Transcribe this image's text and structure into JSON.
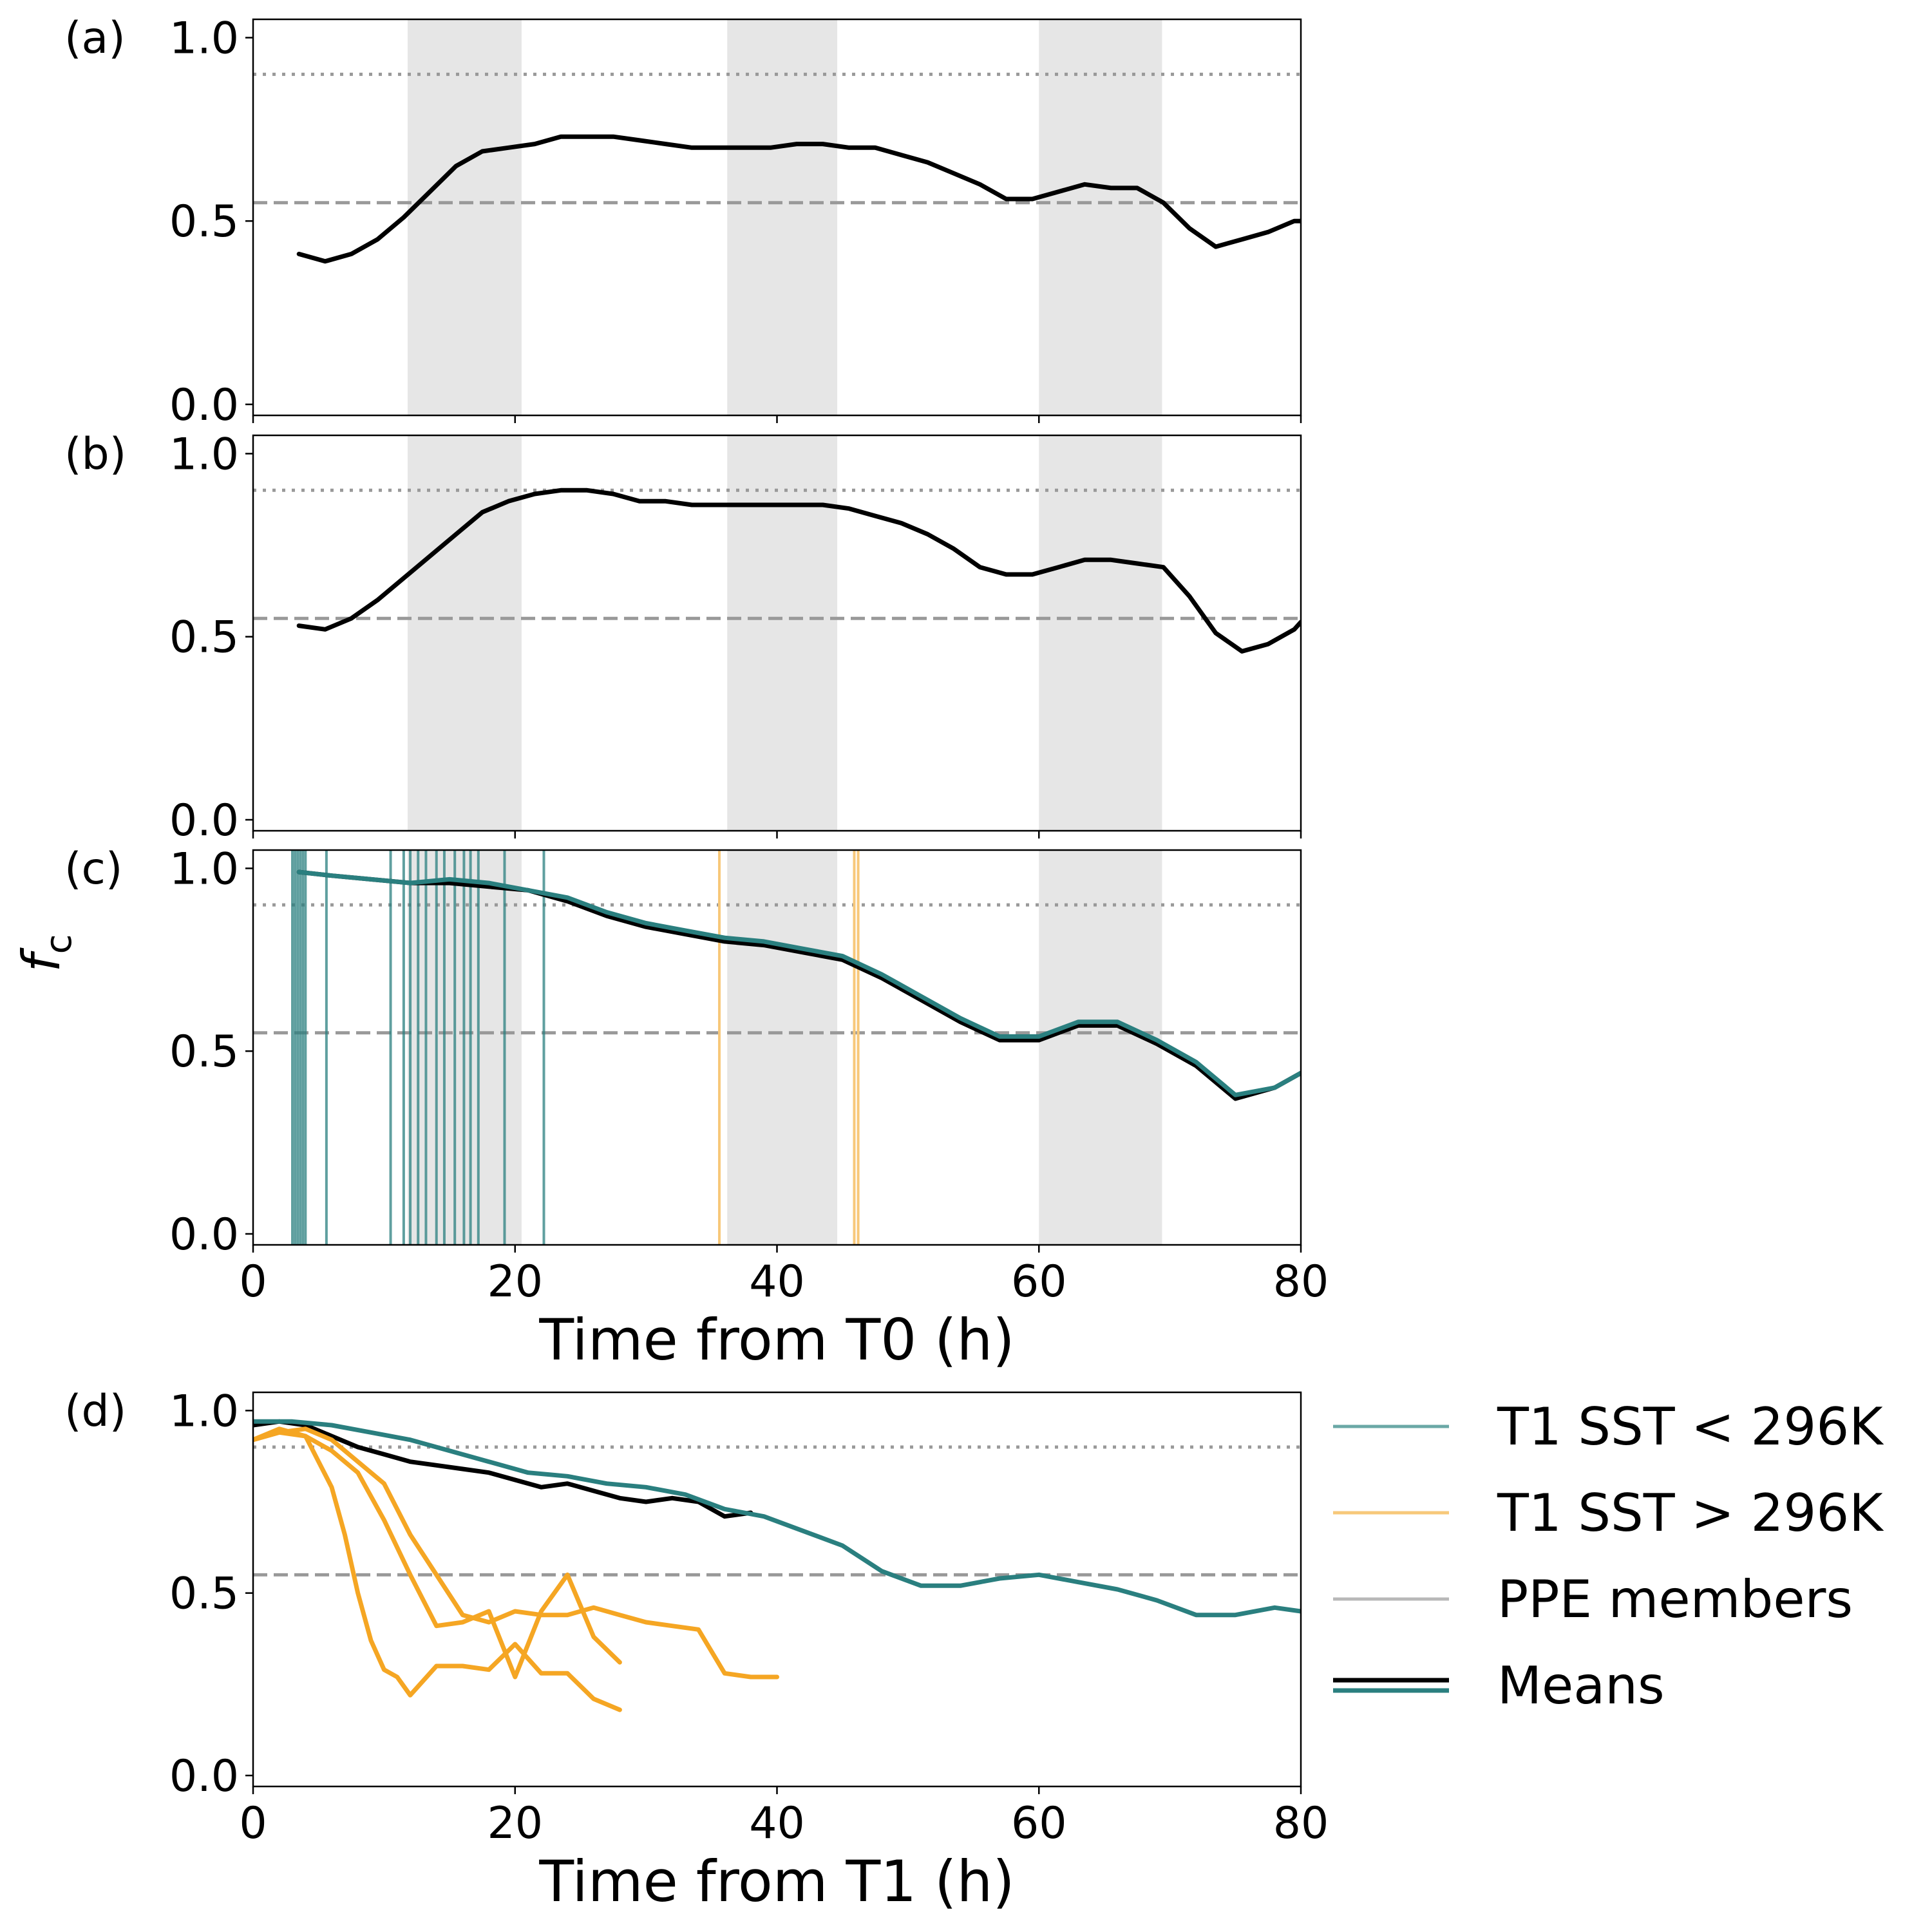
{
  "figure": {
    "ylabel_main": "f",
    "ylabel_sub": "c"
  },
  "chart_data": [
    {
      "panel_label": "(a)",
      "type": "line",
      "xlim": [
        0,
        80
      ],
      "ylim": [
        -0.03,
        1.05
      ],
      "yticks": [
        "0.0",
        "0.5",
        "1.0"
      ],
      "xticks": [],
      "xlabel": "",
      "grid": false,
      "night_bands_h": [
        [
          11.8,
          20.5
        ],
        [
          36.2,
          44.6
        ],
        [
          60,
          69.4
        ]
      ],
      "reference_lines": [
        {
          "style": "dotted",
          "y": 0.9
        },
        {
          "style": "dashed",
          "y": 0.55
        }
      ],
      "series": [
        {
          "role": "mean",
          "color": "#000000",
          "x": [
            3.5,
            5.5,
            7.5,
            9.5,
            11.5,
            13.5,
            15.5,
            17.5,
            19.5,
            21.5,
            23.5,
            25.5,
            27.5,
            29.5,
            31.5,
            33.5,
            35.5,
            37.5,
            39.5,
            41.5,
            43.5,
            45.5,
            47.5,
            49.5,
            51.5,
            53.5,
            55.5,
            57.5,
            59.5,
            61.5,
            63.5,
            65.5,
            67.5,
            69.5,
            71.5,
            73.5,
            75.5,
            77.5,
            79.5,
            80
          ],
          "y": [
            0.41,
            0.39,
            0.41,
            0.45,
            0.51,
            0.58,
            0.65,
            0.69,
            0.7,
            0.71,
            0.73,
            0.73,
            0.73,
            0.72,
            0.71,
            0.7,
            0.7,
            0.7,
            0.7,
            0.71,
            0.71,
            0.7,
            0.7,
            0.68,
            0.66,
            0.63,
            0.6,
            0.56,
            0.56,
            0.58,
            0.6,
            0.59,
            0.59,
            0.55,
            0.48,
            0.43,
            0.45,
            0.47,
            0.5,
            0.5
          ]
        }
      ]
    },
    {
      "panel_label": "(b)",
      "type": "line",
      "xlim": [
        0,
        80
      ],
      "ylim": [
        -0.03,
        1.05
      ],
      "yticks": [
        "0.0",
        "0.5",
        "1.0"
      ],
      "xticks": [],
      "xlabel": "",
      "grid": false,
      "night_bands_h": [
        [
          11.8,
          20.5
        ],
        [
          36.2,
          44.6
        ],
        [
          60,
          69.4
        ]
      ],
      "reference_lines": [
        {
          "style": "dotted",
          "y": 0.9
        },
        {
          "style": "dashed",
          "y": 0.55
        }
      ],
      "series": [
        {
          "role": "mean",
          "color": "#000000",
          "x": [
            3.5,
            5.5,
            7.5,
            9.5,
            11.5,
            13.5,
            15.5,
            17.5,
            19.5,
            21.5,
            23.5,
            25.5,
            27.5,
            29.5,
            31.5,
            33.5,
            35.5,
            37.5,
            39.5,
            41.5,
            43.5,
            45.5,
            47.5,
            49.5,
            51.5,
            53.5,
            55.5,
            57.5,
            59.5,
            61.5,
            63.5,
            65.5,
            67.5,
            69.5,
            71.5,
            73.5,
            75.5,
            77.5,
            79.5,
            80
          ],
          "y": [
            0.53,
            0.52,
            0.55,
            0.6,
            0.66,
            0.72,
            0.78,
            0.84,
            0.87,
            0.89,
            0.9,
            0.9,
            0.89,
            0.87,
            0.87,
            0.86,
            0.86,
            0.86,
            0.86,
            0.86,
            0.86,
            0.85,
            0.83,
            0.81,
            0.78,
            0.74,
            0.69,
            0.67,
            0.67,
            0.69,
            0.71,
            0.71,
            0.7,
            0.69,
            0.61,
            0.51,
            0.46,
            0.48,
            0.52,
            0.54
          ]
        }
      ]
    },
    {
      "panel_label": "(c)",
      "type": "line",
      "xlim": [
        0,
        80
      ],
      "ylim": [
        -0.03,
        1.05
      ],
      "yticks": [
        "0.0",
        "0.5",
        "1.0"
      ],
      "xticks": [
        "0",
        "20",
        "40",
        "60",
        "80"
      ],
      "xlabel": "Time from T0 (h)",
      "grid": false,
      "night_bands_h": [
        [
          11.8,
          20.5
        ],
        [
          36.2,
          44.6
        ],
        [
          60,
          69.4
        ]
      ],
      "reference_lines": [
        {
          "style": "dotted",
          "y": 0.9
        },
        {
          "style": "dashed",
          "y": 0.55
        }
      ],
      "vertical_markers": {
        "teal_x": [
          3,
          3.2,
          3.4,
          3.6,
          3.8,
          4,
          5.6,
          10.5,
          11.5,
          12,
          12.6,
          13.2,
          14,
          14.6,
          15.4,
          16.1,
          16.6,
          17.2,
          19.2,
          22.2
        ],
        "orange_x": [
          35.6,
          45.9,
          46.2
        ]
      },
      "series": [
        {
          "role": "mean",
          "color": "#000000",
          "x": [
            3.5,
            6,
            9,
            12,
            15,
            18,
            21,
            24,
            27,
            30,
            33,
            36,
            39,
            42,
            45,
            48,
            51,
            54,
            57,
            60,
            63,
            66,
            69,
            72,
            75,
            78,
            80
          ],
          "y": [
            0.99,
            0.98,
            0.97,
            0.96,
            0.96,
            0.95,
            0.94,
            0.91,
            0.87,
            0.84,
            0.82,
            0.8,
            0.79,
            0.77,
            0.75,
            0.7,
            0.64,
            0.58,
            0.53,
            0.53,
            0.57,
            0.57,
            0.52,
            0.46,
            0.37,
            0.4,
            0.44
          ]
        },
        {
          "role": "teal mean",
          "color": "#2a7f7f",
          "x": [
            3.5,
            6,
            9,
            12,
            15,
            18,
            21,
            24,
            27,
            30,
            33,
            36,
            39,
            42,
            45,
            48,
            51,
            54,
            57,
            60,
            63,
            66,
            69,
            72,
            75,
            78,
            80
          ],
          "y": [
            0.99,
            0.98,
            0.97,
            0.96,
            0.97,
            0.96,
            0.94,
            0.92,
            0.88,
            0.85,
            0.83,
            0.81,
            0.8,
            0.78,
            0.76,
            0.71,
            0.65,
            0.59,
            0.54,
            0.54,
            0.58,
            0.58,
            0.53,
            0.47,
            0.38,
            0.4,
            0.44
          ]
        }
      ]
    },
    {
      "panel_label": "(d)",
      "type": "line",
      "xlim": [
        0,
        80
      ],
      "ylim": [
        -0.03,
        1.05
      ],
      "yticks": [
        "0.0",
        "0.5",
        "1.0"
      ],
      "xticks": [
        "0",
        "20",
        "40",
        "60",
        "80"
      ],
      "xlabel": "Time from T1 (h)",
      "grid": false,
      "reference_lines": [
        {
          "style": "dotted",
          "y": 0.9
        },
        {
          "style": "dashed",
          "y": 0.55
        }
      ],
      "legend": {
        "placement": "right, outside",
        "entries": [
          {
            "label": "T1 SST < 296K",
            "color": "#6aa8a6",
            "style": "single"
          },
          {
            "label": "T1 SST > 296K",
            "color": "#f7c87a",
            "style": "single"
          },
          {
            "label": "PPE members",
            "color": "#b8b8b8",
            "style": "single"
          },
          {
            "label": "Means",
            "color": "#000000",
            "color2": "#2a7f7f",
            "style": "double"
          }
        ]
      },
      "series": [
        {
          "role": "mean",
          "color": "#000000",
          "x": [
            0,
            2,
            4,
            6,
            8,
            10,
            12,
            14,
            16,
            18,
            20,
            22,
            24,
            26,
            28,
            30,
            32,
            34,
            36,
            38
          ],
          "y": [
            0.96,
            0.97,
            0.96,
            0.93,
            0.9,
            0.88,
            0.86,
            0.85,
            0.84,
            0.83,
            0.81,
            0.79,
            0.8,
            0.78,
            0.76,
            0.75,
            0.76,
            0.75,
            0.71,
            0.72
          ]
        },
        {
          "role": "teal mean",
          "color": "#2a7f7f",
          "x": [
            0,
            3,
            6,
            9,
            12,
            15,
            18,
            21,
            24,
            27,
            30,
            33,
            36,
            39,
            42,
            45,
            48,
            51,
            54,
            57,
            60,
            63,
            66,
            69,
            72,
            75,
            78,
            80
          ],
          "y": [
            0.97,
            0.97,
            0.96,
            0.94,
            0.92,
            0.89,
            0.86,
            0.83,
            0.82,
            0.8,
            0.79,
            0.77,
            0.73,
            0.71,
            0.67,
            0.63,
            0.56,
            0.52,
            0.52,
            0.54,
            0.55,
            0.53,
            0.51,
            0.48,
            0.44,
            0.44,
            0.46,
            0.45
          ]
        },
        {
          "role": "orange member",
          "color": "#f5a623",
          "x": [
            0,
            2,
            4,
            5,
            6,
            7,
            8,
            9,
            10,
            11,
            12,
            14,
            16,
            18,
            20,
            22,
            24,
            26,
            28
          ],
          "y": [
            0.92,
            0.95,
            0.93,
            0.86,
            0.79,
            0.66,
            0.5,
            0.37,
            0.29,
            0.27,
            0.22,
            0.3,
            0.3,
            0.29,
            0.36,
            0.28,
            0.28,
            0.21,
            0.18
          ]
        },
        {
          "role": "orange member",
          "color": "#f5a623",
          "x": [
            0,
            2,
            4,
            6,
            8,
            10,
            12,
            14,
            16,
            18,
            20,
            22,
            24,
            26,
            28
          ],
          "y": [
            0.92,
            0.94,
            0.93,
            0.89,
            0.83,
            0.7,
            0.55,
            0.41,
            0.42,
            0.45,
            0.27,
            0.45,
            0.55,
            0.38,
            0.31
          ]
        },
        {
          "role": "orange member",
          "color": "#f5a623",
          "x": [
            0,
            2,
            4,
            6,
            8,
            10,
            12,
            14,
            16,
            18,
            20,
            22,
            24,
            26,
            28,
            30,
            32,
            34,
            36,
            38,
            40
          ],
          "y": [
            0.92,
            0.94,
            0.95,
            0.92,
            0.86,
            0.8,
            0.66,
            0.55,
            0.44,
            0.42,
            0.45,
            0.44,
            0.44,
            0.46,
            0.44,
            0.42,
            0.41,
            0.4,
            0.28,
            0.27,
            0.27
          ]
        }
      ]
    }
  ]
}
